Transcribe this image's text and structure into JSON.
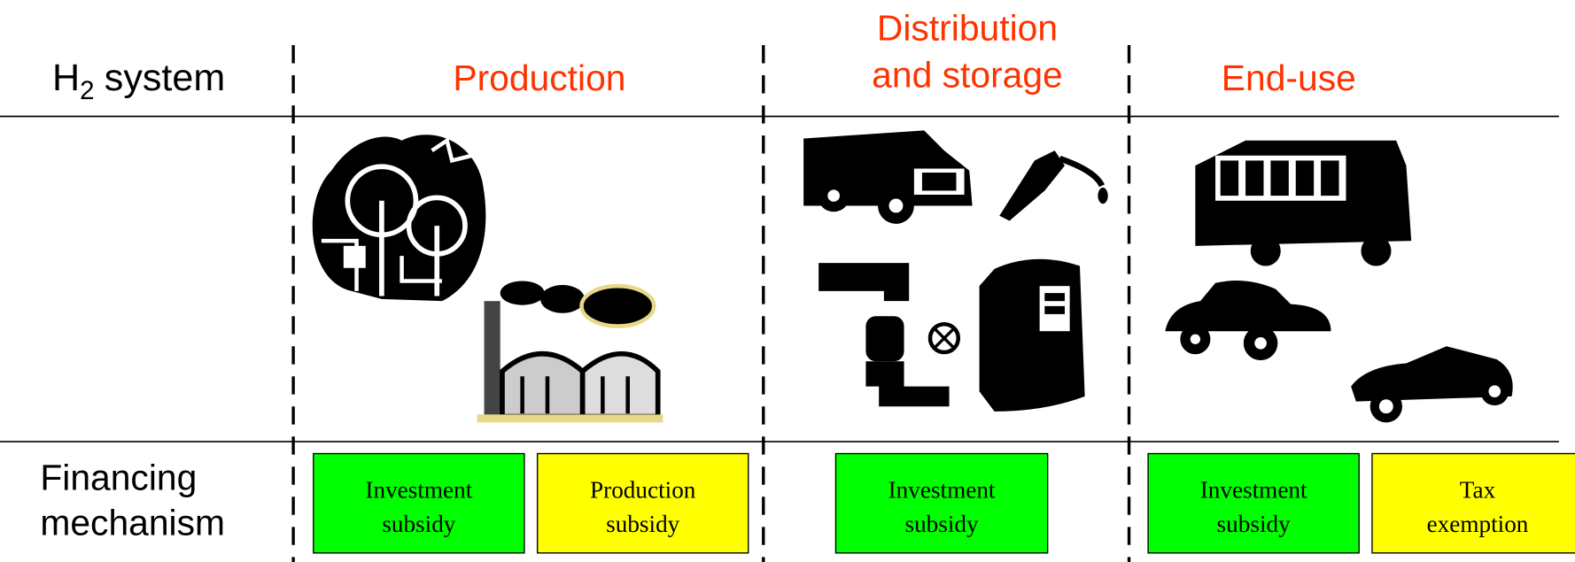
{
  "header": {
    "system_label": {
      "base": "H",
      "subscript": "2",
      "suffix": "system"
    },
    "columns": [
      {
        "title_lines": [
          "Production"
        ]
      },
      {
        "title_lines": [
          "Distribution",
          "and storage"
        ]
      },
      {
        "title_lines": [
          "End-use"
        ]
      }
    ]
  },
  "financing": {
    "label_lines": [
      "Financing",
      "mechanism"
    ],
    "boxes": [
      [
        {
          "lines": [
            "Investment",
            "subsidy"
          ],
          "color": "#00ff00"
        },
        {
          "lines": [
            "Production",
            "subsidy"
          ],
          "color": "#ffff00"
        }
      ],
      [
        {
          "lines": [
            "Investment",
            "subsidy"
          ],
          "color": "#00ff00"
        }
      ],
      [
        {
          "lines": [
            "Investment",
            "subsidy"
          ],
          "color": "#00ff00"
        },
        {
          "lines": [
            "Tax",
            "exemption"
          ],
          "color": "#ffff00"
        }
      ]
    ]
  }
}
